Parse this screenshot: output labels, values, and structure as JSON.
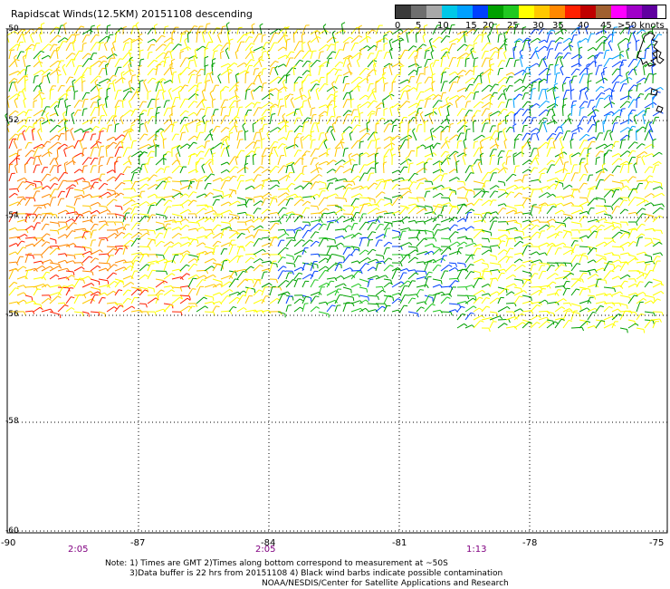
{
  "title": "Rapidscat Winds(12.5KM) 20151108 descending",
  "colorbar": {
    "colors": [
      "#3a3a3a",
      "#6e6e6e",
      "#a8a8a8",
      "#00c8e8",
      "#00a0ff",
      "#0040ff",
      "#00a000",
      "#20c820",
      "#ffff00",
      "#ffc800",
      "#ff8800",
      "#ff2000",
      "#c00000",
      "#a06030",
      "#ff00ff",
      "#a000c8",
      "#6000a0"
    ],
    "ticks": [
      "0",
      "5",
      "10",
      "15",
      "20",
      "25",
      "30",
      "35",
      "40",
      "45",
      ">50 knots"
    ]
  },
  "lat_labels": [
    "-50",
    "-52",
    "-54",
    "-56",
    "-58",
    "-60"
  ],
  "lon_labels": [
    "-90",
    "-87",
    "-84",
    "-81",
    "-78",
    "-75"
  ],
  "time_labels": [
    "2:05",
    "2:05",
    "1:13"
  ],
  "notes": [
    "Note: 1) Times are GMT 2)Times along bottom correspond to measurement at ~50S",
    "3)Data buffer is 22 hrs from 20151108 4) Black wind barbs indicate possible contamination",
    "NOAA/NESDIS/Center for Satellite Applications and Research"
  ]
}
